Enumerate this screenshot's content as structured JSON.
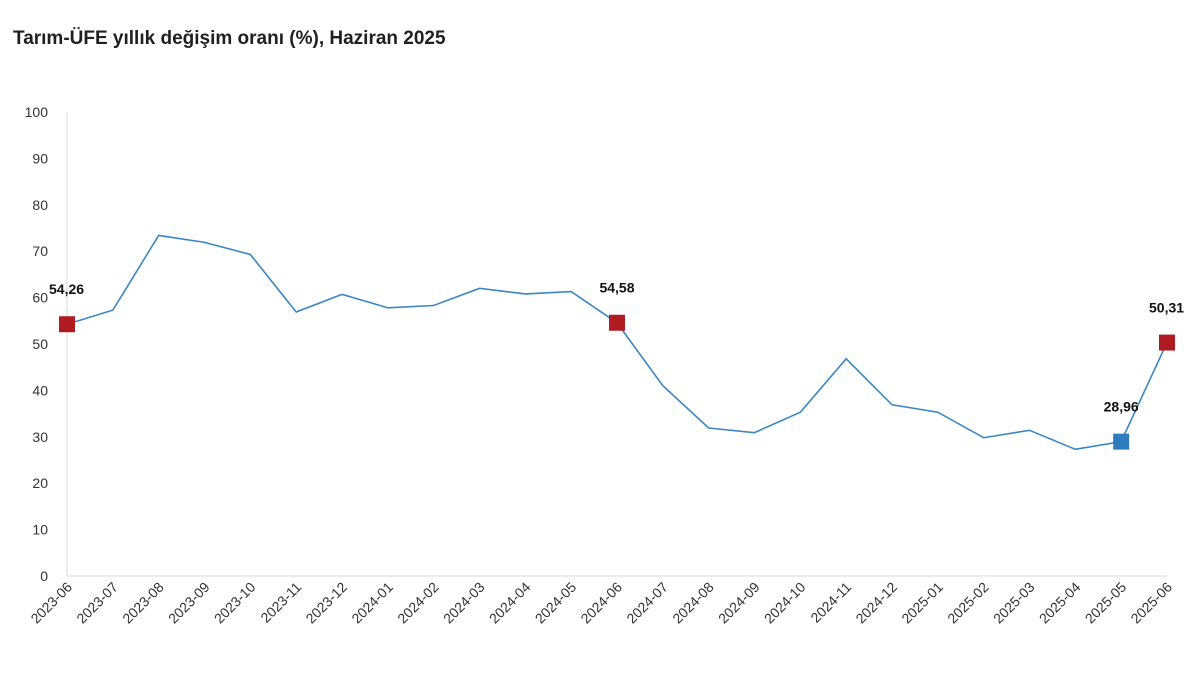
{
  "title": "Tarım-ÜFE yıllık değişim oranı (%), Haziran 2025",
  "chart_data": {
    "type": "line",
    "title": "Tarım-ÜFE yıllık değişim oranı (%), Haziran 2025",
    "xlabel": "",
    "ylabel": "",
    "ylim": [
      0,
      100
    ],
    "yticks": [
      "0",
      "10",
      "20",
      "30",
      "40",
      "50",
      "60",
      "70",
      "80",
      "90",
      "100"
    ],
    "grid": false,
    "categories": [
      "2023-06",
      "2023-07",
      "2023-08",
      "2023-09",
      "2023-10",
      "2023-11",
      "2023-12",
      "2024-01",
      "2024-02",
      "2024-03",
      "2024-04",
      "2024-05",
      "2024-06",
      "2024-07",
      "2024-08",
      "2024-09",
      "2024-10",
      "2024-11",
      "2024-12",
      "2025-01",
      "2025-02",
      "2025-03",
      "2025-04",
      "2025-05",
      "2025-06"
    ],
    "series": [
      {
        "color": "#3b86c6",
        "values": [
          54.26,
          57.3,
          73.4,
          71.9,
          69.3,
          56.9,
          60.7,
          57.8,
          58.3,
          62.0,
          60.8,
          61.3,
          54.58,
          41.0,
          31.9,
          30.9,
          35.3,
          46.8,
          36.9,
          35.3,
          29.8,
          31.4,
          27.3,
          28.96,
          50.31
        ]
      }
    ],
    "highlights": [
      {
        "index": 0,
        "label": "54,26",
        "color": "#b01c22"
      },
      {
        "index": 12,
        "label": "54,58",
        "color": "#b01c22"
      },
      {
        "index": 23,
        "label": "28,96",
        "color": "#2f7bbf"
      },
      {
        "index": 24,
        "label": "50,31",
        "color": "#b01c22"
      }
    ]
  }
}
